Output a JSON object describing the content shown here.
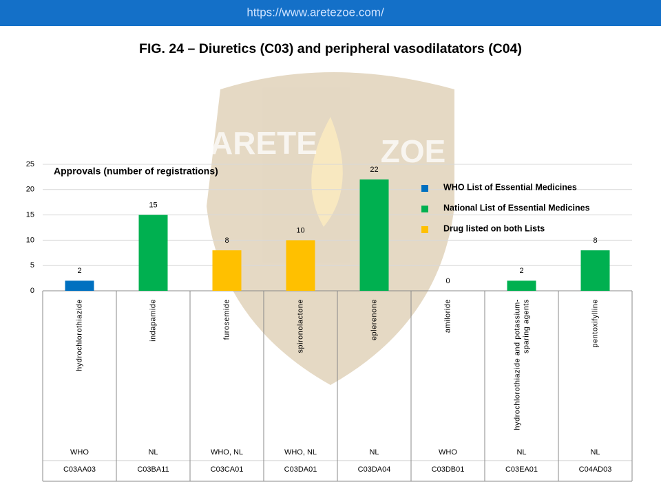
{
  "header": {
    "url": "https://www.aretezoe.com/"
  },
  "watermark": [
    "ARETE",
    "ZOE"
  ],
  "chart_data": {
    "type": "bar",
    "title": "FIG. 24 – Diuretics (C03) and peripheral vasodilatators (C04)",
    "annotation": "Approvals (number of registrations)",
    "categories": [
      "hydrochlorothiazide",
      "indapamide",
      "furosemide",
      "spironolactone",
      "eplerenone",
      "amiloride",
      "hydrochlorothiazide and potassium-sparing agents",
      "pentoxifylline"
    ],
    "values": [
      2,
      15,
      8,
      10,
      22,
      0,
      2,
      8
    ],
    "colors": [
      "#0070c0",
      "#00b050",
      "#ffc000",
      "#ffc000",
      "#00b050",
      "#0070c0",
      "#00b050",
      "#00b050"
    ],
    "lists": [
      "WHO",
      "NL",
      "WHO, NL",
      "WHO, NL",
      "NL",
      "WHO",
      "NL",
      "NL"
    ],
    "codes": [
      "C03AA03",
      "C03BA11",
      "C03CA01",
      "C03DA01",
      "C03DA04",
      "C03DB01",
      "C03EA01",
      "C04AD03"
    ],
    "legend": [
      {
        "name": "WHO List of Essential Medicines",
        "color": "#0070c0"
      },
      {
        "name": "National List of Essential Medicines",
        "color": "#00b050"
      },
      {
        "name": "Drug listed on both Lists",
        "color": "#ffc000"
      }
    ],
    "ylim": [
      0,
      25
    ],
    "yticks": [
      0,
      5,
      10,
      15,
      20,
      25
    ],
    "grid": true
  }
}
